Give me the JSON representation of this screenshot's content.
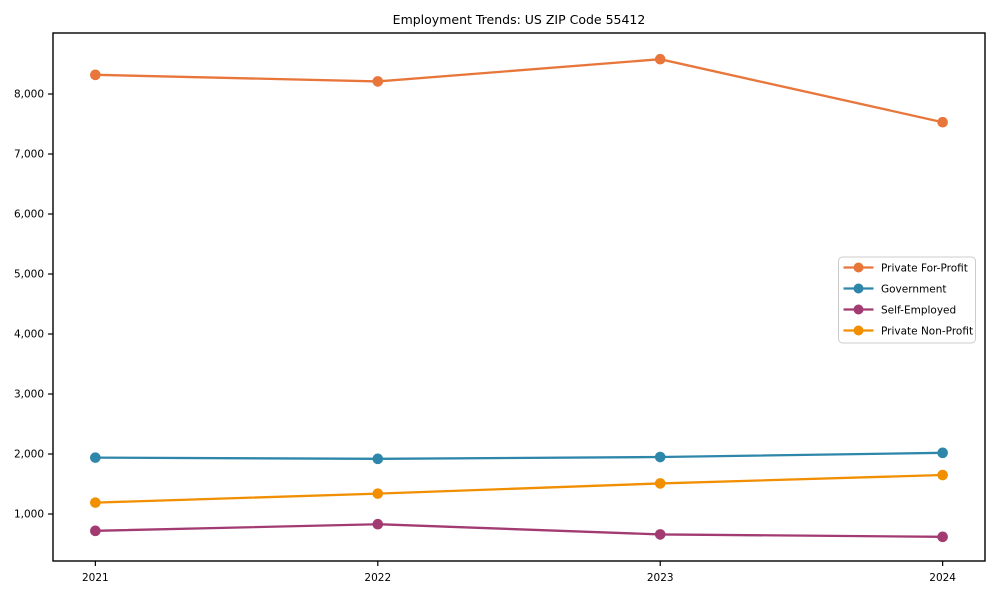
{
  "chart_data": {
    "type": "line",
    "title": "Employment Trends: US ZIP Code 55412",
    "x": [
      2021,
      2022,
      2023,
      2024
    ],
    "x_tick_labels": [
      "2021",
      "2022",
      "2023",
      "2024"
    ],
    "xlim": [
      2020.85,
      2024.15
    ],
    "y_ticks": [
      1000,
      2000,
      3000,
      4000,
      5000,
      6000,
      7000,
      8000
    ],
    "y_tick_labels": [
      "1,000",
      "2,000",
      "3,000",
      "4,000",
      "5,000",
      "6,000",
      "7,000",
      "8,000"
    ],
    "ylim": [
      217,
      9017
    ],
    "grid": false,
    "legend_position": "center right",
    "series": [
      {
        "name": "Private For-Profit",
        "color": "#E8763B",
        "values": [
          8320,
          8210,
          8580,
          7530
        ]
      },
      {
        "name": "Government",
        "color": "#2E86AB",
        "values": [
          1940,
          1920,
          1950,
          2020
        ]
      },
      {
        "name": "Self-Employed",
        "color": "#A23B72",
        "values": [
          720,
          830,
          660,
          620
        ]
      },
      {
        "name": "Private Non-Profit",
        "color": "#F18F01",
        "values": [
          1190,
          1340,
          1510,
          1650
        ]
      }
    ]
  },
  "colors": {
    "background": "#ffffff",
    "axis": "#000000",
    "tick_label": "#000000",
    "legend_border": "#cccccc",
    "legend_background": "#ffffff"
  }
}
